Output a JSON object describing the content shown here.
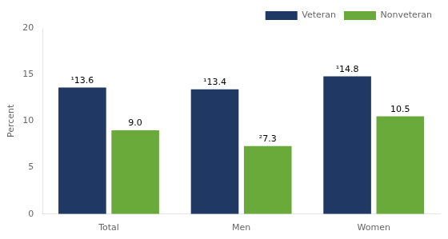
{
  "chart_data": {
    "type": "bar",
    "categories": [
      "Total",
      "Men",
      "Women"
    ],
    "series": [
      {
        "name": "Veteran",
        "color": "#1f3864",
        "values": [
          13.6,
          13.4,
          14.8
        ],
        "value_labels": [
          "¹13.6",
          "¹13.4",
          "¹14.8"
        ]
      },
      {
        "name": "Nonveteran",
        "color": "#6aaa3a",
        "values": [
          9.0,
          7.3,
          10.5
        ],
        "value_labels": [
          "9.0",
          "²7.3",
          "10.5"
        ]
      }
    ],
    "ylabel": "Percent",
    "ylim": [
      0,
      20
    ],
    "yticks": [
      0,
      5,
      10,
      15,
      20
    ],
    "grid": false,
    "legend": "upper right",
    "data_labels": true
  }
}
